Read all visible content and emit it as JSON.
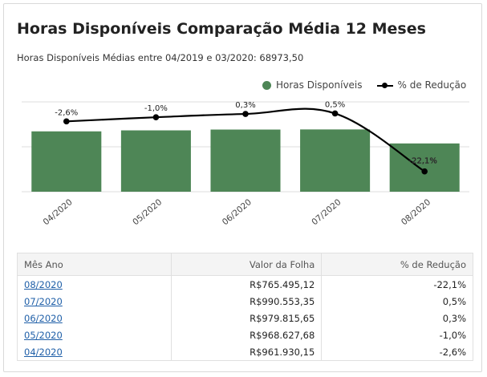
{
  "title": "Horas Disponíveis Comparação Média 12 Meses",
  "subtitle": "Horas Disponíveis Médias entre 04/2019 e 03/2020: 68973,50",
  "legend": {
    "bars_label": "Horas Disponíveis",
    "line_label": "% de Redução",
    "bar_color": "#4e8656",
    "line_color": "#000000"
  },
  "chart_data": {
    "type": "bar",
    "categories": [
      "04/2020",
      "05/2020",
      "06/2020",
      "07/2020",
      "08/2020"
    ],
    "series": [
      {
        "name": "Horas Disponíveis",
        "type": "bar",
        "values": [
          67180,
          68280,
          69180,
          69320,
          53730
        ]
      },
      {
        "name": "% de Redução",
        "type": "line",
        "values": [
          -2.6,
          -1.0,
          0.3,
          0.5,
          -22.1
        ],
        "labels": [
          "-2,6%",
          "-1,0%",
          "0,3%",
          "0,5%",
          "-22,1%"
        ]
      }
    ],
    "ylim_bars": [
      0,
      100000
    ],
    "ylim_line": [
      -30,
      5
    ],
    "grid": true,
    "legend_position": "top-right"
  },
  "table": {
    "headers": [
      "Mês Ano",
      "Valor da Folha",
      "% de Redução"
    ],
    "rows": [
      [
        "08/2020",
        "R$765.495,12",
        "-22,1%"
      ],
      [
        "07/2020",
        "R$990.553,35",
        "0,5%"
      ],
      [
        "06/2020",
        "R$979.815,65",
        "0,3%"
      ],
      [
        "05/2020",
        "R$968.627,68",
        "-1,0%"
      ],
      [
        "04/2020",
        "R$961.930,15",
        "-2,6%"
      ]
    ]
  }
}
